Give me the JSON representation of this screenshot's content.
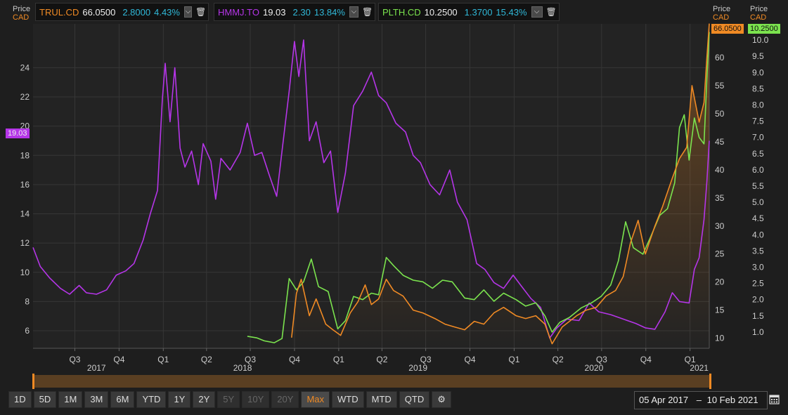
{
  "colors": {
    "trul": "#f08a24",
    "hmmj": "#b535e8",
    "plth": "#7be34e",
    "teal": "#30b8d8"
  },
  "legends": [
    {
      "symbol": "TRUL.CD",
      "price": "66.0500",
      "change": "2.8000",
      "pct": "4.43%"
    },
    {
      "symbol": "HMMJ.TO",
      "price": "19.03",
      "change": "2.30",
      "pct": "13.84%"
    },
    {
      "symbol": "PLTH.CD",
      "price": "10.2500",
      "change": "1.3700",
      "pct": "15.43%"
    }
  ],
  "axis_headers": {
    "left": [
      "Price",
      "CAD"
    ],
    "right1": [
      "Price",
      "CAD"
    ],
    "right2": [
      "Price",
      "CAD"
    ]
  },
  "last_tags": {
    "hmmj": "19.03",
    "trul": "66.0500",
    "plth": "10.2500"
  },
  "toolbar": {
    "buttons": [
      "1D",
      "5D",
      "1M",
      "3M",
      "6M",
      "YTD",
      "1Y",
      "2Y",
      "5Y",
      "10Y",
      "20Y",
      "Max",
      "WTD",
      "MTD",
      "QTD"
    ],
    "disabled": [
      "5Y",
      "10Y",
      "20Y"
    ],
    "active": "Max"
  },
  "date_range": {
    "from": "05 Apr 2017",
    "to": "10 Feb 2021"
  },
  "chart_data": {
    "type": "line",
    "x_range": [
      "2017-04-05",
      "2021-02-10"
    ],
    "x_ticks": [
      {
        "label": "Q3",
        "date": "2017-07-01"
      },
      {
        "label": "Q4",
        "date": "2017-10-01"
      },
      {
        "label": "Q1",
        "date": "2018-01-01"
      },
      {
        "label": "Q2",
        "date": "2018-04-01"
      },
      {
        "label": "Q3",
        "date": "2018-07-01"
      },
      {
        "label": "Q4",
        "date": "2018-10-01"
      },
      {
        "label": "Q1",
        "date": "2019-01-01"
      },
      {
        "label": "Q2",
        "date": "2019-04-01"
      },
      {
        "label": "Q3",
        "date": "2019-07-01"
      },
      {
        "label": "Q4",
        "date": "2019-10-01"
      },
      {
        "label": "Q1",
        "date": "2020-01-01"
      },
      {
        "label": "Q2",
        "date": "2020-04-01"
      },
      {
        "label": "Q3",
        "date": "2020-07-01"
      },
      {
        "label": "Q4",
        "date": "2020-10-01"
      },
      {
        "label": "Q1",
        "date": "2021-01-01"
      }
    ],
    "years": [
      {
        "label": "2017",
        "date": "2017-08-15"
      },
      {
        "label": "2018",
        "date": "2018-06-15"
      },
      {
        "label": "2019",
        "date": "2019-06-15"
      },
      {
        "label": "2020",
        "date": "2020-06-15"
      },
      {
        "label": "2021",
        "date": "2021-01-20"
      }
    ],
    "axes": {
      "left": {
        "min": 4.8,
        "max": 27,
        "ticks": [
          6,
          8,
          10,
          12,
          14,
          16,
          18,
          20,
          22,
          24
        ]
      },
      "right1": {
        "min": 8.2,
        "max": 66,
        "ticks": [
          10,
          15,
          20,
          25,
          30,
          35,
          40,
          45,
          50,
          55,
          60,
          65
        ]
      },
      "right2": {
        "min": 0.5,
        "max": 10.5,
        "ticks": [
          "1.0",
          "1.5",
          "2.0",
          "2.5",
          "3.0",
          "3.5",
          "4.0",
          "4.5",
          "5.0",
          "5.5",
          "6.0",
          "6.5",
          "7.0",
          "7.5",
          "8.0",
          "8.5",
          "9.0",
          "9.5",
          "10.0"
        ]
      }
    },
    "series": [
      {
        "name": "HMMJ.TO",
        "axis": "left",
        "color": "#b535e8",
        "points": [
          [
            "2017-04-05",
            11.7
          ],
          [
            "2017-04-20",
            10.4
          ],
          [
            "2017-05-10",
            9.6
          ],
          [
            "2017-06-01",
            8.9
          ],
          [
            "2017-06-20",
            8.5
          ],
          [
            "2017-07-10",
            9.1
          ],
          [
            "2017-07-25",
            8.6
          ],
          [
            "2017-08-15",
            8.5
          ],
          [
            "2017-09-05",
            8.8
          ],
          [
            "2017-09-25",
            9.8
          ],
          [
            "2017-10-15",
            10.1
          ],
          [
            "2017-11-01",
            10.6
          ],
          [
            "2017-11-20",
            12.2
          ],
          [
            "2017-12-05",
            14.0
          ],
          [
            "2017-12-20",
            15.6
          ],
          [
            "2017-12-30",
            21.8
          ],
          [
            "2018-01-05",
            24.3
          ],
          [
            "2018-01-15",
            20.3
          ],
          [
            "2018-01-25",
            24.0
          ],
          [
            "2018-02-05",
            18.5
          ],
          [
            "2018-02-15",
            17.2
          ],
          [
            "2018-03-01",
            18.3
          ],
          [
            "2018-03-15",
            16.0
          ],
          [
            "2018-03-25",
            18.8
          ],
          [
            "2018-04-10",
            17.6
          ],
          [
            "2018-04-20",
            15.0
          ],
          [
            "2018-05-01",
            17.8
          ],
          [
            "2018-05-20",
            17.0
          ],
          [
            "2018-06-10",
            18.2
          ],
          [
            "2018-06-25",
            20.2
          ],
          [
            "2018-07-10",
            18.0
          ],
          [
            "2018-07-25",
            18.2
          ],
          [
            "2018-08-10",
            16.6
          ],
          [
            "2018-08-25",
            15.2
          ],
          [
            "2018-09-05",
            18.3
          ],
          [
            "2018-09-20",
            22.4
          ],
          [
            "2018-10-01",
            25.8
          ],
          [
            "2018-10-10",
            23.4
          ],
          [
            "2018-10-20",
            25.9
          ],
          [
            "2018-11-01",
            19.0
          ],
          [
            "2018-11-15",
            20.3
          ],
          [
            "2018-12-01",
            17.5
          ],
          [
            "2018-12-15",
            18.3
          ],
          [
            "2018-12-30",
            14.1
          ],
          [
            "2019-01-15",
            16.8
          ],
          [
            "2019-02-01",
            21.4
          ],
          [
            "2019-02-20",
            22.4
          ],
          [
            "2019-03-10",
            23.7
          ],
          [
            "2019-03-25",
            22.1
          ],
          [
            "2019-04-10",
            21.6
          ],
          [
            "2019-04-30",
            20.2
          ],
          [
            "2019-05-20",
            19.6
          ],
          [
            "2019-06-05",
            18.0
          ],
          [
            "2019-06-20",
            17.5
          ],
          [
            "2019-07-10",
            16.0
          ],
          [
            "2019-07-30",
            15.3
          ],
          [
            "2019-08-20",
            17.0
          ],
          [
            "2019-09-05",
            14.8
          ],
          [
            "2019-09-25",
            13.6
          ],
          [
            "2019-10-15",
            10.6
          ],
          [
            "2019-11-01",
            10.2
          ],
          [
            "2019-11-20",
            9.3
          ],
          [
            "2019-12-10",
            8.9
          ],
          [
            "2019-12-30",
            9.8
          ],
          [
            "2020-01-15",
            9.1
          ],
          [
            "2020-02-05",
            8.2
          ],
          [
            "2020-02-25",
            7.6
          ],
          [
            "2020-03-15",
            5.5
          ],
          [
            "2020-03-30",
            6.2
          ],
          [
            "2020-04-20",
            6.8
          ],
          [
            "2020-05-15",
            6.7
          ],
          [
            "2020-06-05",
            7.9
          ],
          [
            "2020-06-25",
            7.3
          ],
          [
            "2020-07-20",
            7.1
          ],
          [
            "2020-08-15",
            6.8
          ],
          [
            "2020-09-10",
            6.5
          ],
          [
            "2020-09-30",
            6.2
          ],
          [
            "2020-10-20",
            6.1
          ],
          [
            "2020-11-10",
            7.3
          ],
          [
            "2020-11-25",
            8.6
          ],
          [
            "2020-12-10",
            8.0
          ],
          [
            "2020-12-30",
            7.9
          ],
          [
            "2021-01-10",
            10.2
          ],
          [
            "2021-01-20",
            11.0
          ],
          [
            "2021-01-30",
            13.6
          ],
          [
            "2021-02-05",
            16.2
          ],
          [
            "2021-02-10",
            19.0
          ]
        ]
      },
      {
        "name": "PLTH.CD",
        "axis": "right2",
        "color": "#7be34e",
        "points": [
          [
            "2018-06-25",
            0.87
          ],
          [
            "2018-07-15",
            0.82
          ],
          [
            "2018-07-30",
            0.73
          ],
          [
            "2018-08-20",
            0.67
          ],
          [
            "2018-09-05",
            0.8
          ],
          [
            "2018-09-20",
            2.65
          ],
          [
            "2018-10-05",
            2.3
          ],
          [
            "2018-10-20",
            2.55
          ],
          [
            "2018-11-05",
            3.25
          ],
          [
            "2018-11-20",
            2.4
          ],
          [
            "2018-12-10",
            2.25
          ],
          [
            "2018-12-30",
            1.1
          ],
          [
            "2019-01-15",
            1.35
          ],
          [
            "2019-02-01",
            2.1
          ],
          [
            "2019-02-20",
            2.0
          ],
          [
            "2019-03-10",
            2.2
          ],
          [
            "2019-03-25",
            2.15
          ],
          [
            "2019-04-10",
            3.3
          ],
          [
            "2019-04-25",
            3.05
          ],
          [
            "2019-05-15",
            2.75
          ],
          [
            "2019-06-05",
            2.6
          ],
          [
            "2019-06-25",
            2.55
          ],
          [
            "2019-07-15",
            2.35
          ],
          [
            "2019-08-05",
            2.6
          ],
          [
            "2019-08-25",
            2.55
          ],
          [
            "2019-09-20",
            2.05
          ],
          [
            "2019-10-10",
            2.0
          ],
          [
            "2019-10-30",
            2.3
          ],
          [
            "2019-11-20",
            1.95
          ],
          [
            "2019-12-10",
            2.2
          ],
          [
            "2020-01-05",
            2.0
          ],
          [
            "2020-01-25",
            1.8
          ],
          [
            "2020-02-15",
            1.9
          ],
          [
            "2020-03-05",
            1.5
          ],
          [
            "2020-03-20",
            1.0
          ],
          [
            "2020-04-05",
            1.3
          ],
          [
            "2020-04-25",
            1.45
          ],
          [
            "2020-05-20",
            1.75
          ],
          [
            "2020-06-10",
            1.9
          ],
          [
            "2020-06-30",
            2.1
          ],
          [
            "2020-07-20",
            2.45
          ],
          [
            "2020-08-05",
            3.2
          ],
          [
            "2020-08-20",
            4.4
          ],
          [
            "2020-09-05",
            3.6
          ],
          [
            "2020-09-25",
            3.4
          ],
          [
            "2020-10-10",
            3.9
          ],
          [
            "2020-10-30",
            4.6
          ],
          [
            "2020-11-15",
            4.8
          ],
          [
            "2020-11-30",
            5.6
          ],
          [
            "2020-12-10",
            7.3
          ],
          [
            "2020-12-20",
            7.7
          ],
          [
            "2020-12-30",
            6.3
          ],
          [
            "2021-01-10",
            7.6
          ],
          [
            "2021-01-20",
            7.0
          ],
          [
            "2021-01-30",
            6.8
          ],
          [
            "2021-02-05",
            8.8
          ],
          [
            "2021-02-10",
            10.25
          ]
        ]
      },
      {
        "name": "TRUL.CD",
        "axis": "right1",
        "color": "#f08a24",
        "points": [
          [
            "2018-09-25",
            10.1
          ],
          [
            "2018-10-05",
            18.0
          ],
          [
            "2018-10-15",
            20.5
          ],
          [
            "2018-11-01",
            14.0
          ],
          [
            "2018-11-15",
            17.0
          ],
          [
            "2018-12-05",
            12.5
          ],
          [
            "2018-12-20",
            11.5
          ],
          [
            "2019-01-05",
            10.5
          ],
          [
            "2019-01-25",
            14.5
          ],
          [
            "2019-02-10",
            16.5
          ],
          [
            "2019-02-25",
            19.5
          ],
          [
            "2019-03-10",
            16.0
          ],
          [
            "2019-03-25",
            17.0
          ],
          [
            "2019-04-10",
            20.5
          ],
          [
            "2019-04-25",
            18.5
          ],
          [
            "2019-05-15",
            17.5
          ],
          [
            "2019-06-05",
            15.0
          ],
          [
            "2019-06-25",
            14.5
          ],
          [
            "2019-07-20",
            13.5
          ],
          [
            "2019-08-10",
            12.5
          ],
          [
            "2019-08-30",
            12.0
          ],
          [
            "2019-09-20",
            11.5
          ],
          [
            "2019-10-10",
            13.0
          ],
          [
            "2019-10-30",
            12.5
          ],
          [
            "2019-11-20",
            14.5
          ],
          [
            "2019-12-10",
            15.5
          ],
          [
            "2020-01-05",
            14.0
          ],
          [
            "2020-01-25",
            13.5
          ],
          [
            "2020-02-15",
            14.0
          ],
          [
            "2020-03-05",
            12.5
          ],
          [
            "2020-03-20",
            9.0
          ],
          [
            "2020-04-10",
            12.0
          ],
          [
            "2020-05-10",
            14.0
          ],
          [
            "2020-05-30",
            15.0
          ],
          [
            "2020-06-20",
            15.5
          ],
          [
            "2020-07-10",
            17.5
          ],
          [
            "2020-07-30",
            18.5
          ],
          [
            "2020-08-15",
            21.0
          ],
          [
            "2020-08-30",
            27.0
          ],
          [
            "2020-09-15",
            31.0
          ],
          [
            "2020-09-30",
            25.0
          ],
          [
            "2020-10-20",
            30.0
          ],
          [
            "2020-11-05",
            33.5
          ],
          [
            "2020-11-25",
            38.5
          ],
          [
            "2020-12-10",
            42.0
          ],
          [
            "2020-12-25",
            44.0
          ],
          [
            "2021-01-05",
            55.0
          ],
          [
            "2021-01-20",
            48.5
          ],
          [
            "2021-01-30",
            52.0
          ],
          [
            "2021-02-05",
            60.0
          ],
          [
            "2021-02-10",
            66.05
          ]
        ]
      }
    ]
  }
}
